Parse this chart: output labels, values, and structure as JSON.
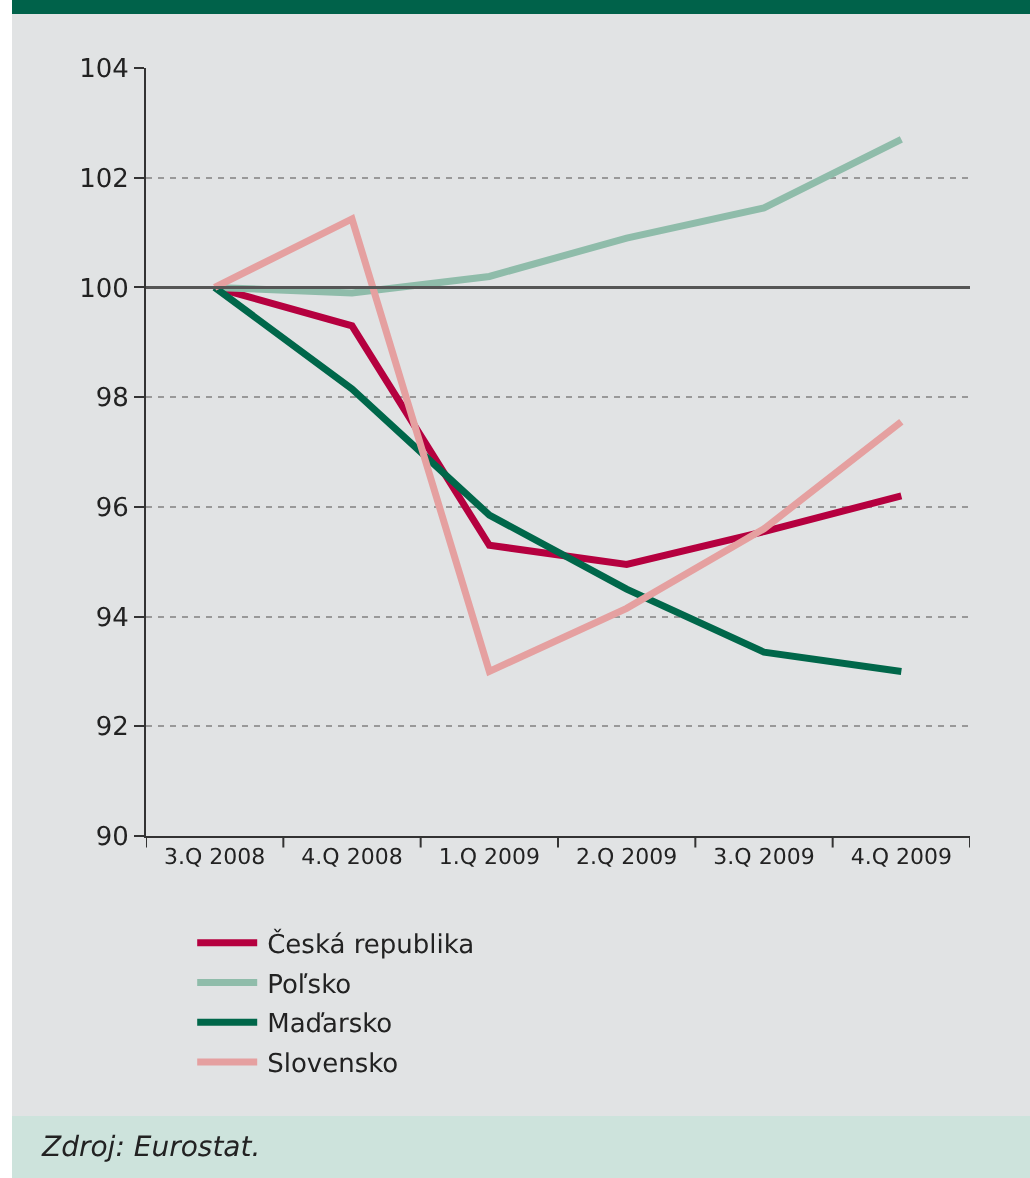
{
  "chart_data": {
    "type": "line",
    "categories": [
      "3.Q 2008",
      "4.Q 2008",
      "1.Q 2009",
      "2.Q 2009",
      "3.Q 2009",
      "4.Q 2009"
    ],
    "series": [
      {
        "name": "Česká republika",
        "color": "#b5003f",
        "values": [
          100,
          99.3,
          95.3,
          94.95,
          95.55,
          96.2
        ]
      },
      {
        "name": "Poľsko",
        "color": "#8fbcaa",
        "values": [
          100,
          99.9,
          100.2,
          100.9,
          101.45,
          102.7
        ]
      },
      {
        "name": "Maďarsko",
        "color": "#00674a",
        "values": [
          100,
          98.15,
          95.85,
          94.5,
          93.35,
          93.0
        ]
      },
      {
        "name": "Slovensko",
        "color": "#e5a0a0",
        "values": [
          100,
          101.25,
          93.0,
          94.15,
          95.6,
          97.55
        ]
      }
    ],
    "ylim": [
      90,
      104
    ],
    "yticks": [
      90,
      92,
      94,
      96,
      98,
      100,
      102,
      104
    ],
    "ref_lines": [
      {
        "axis": "y",
        "value": 100,
        "color": "#555555",
        "line_style": "solid"
      }
    ],
    "grid": "y",
    "legend": "bottom",
    "marker": "none",
    "line_style": "solid",
    "annotations": [
      "Zdroj: Eurostat."
    ]
  }
}
